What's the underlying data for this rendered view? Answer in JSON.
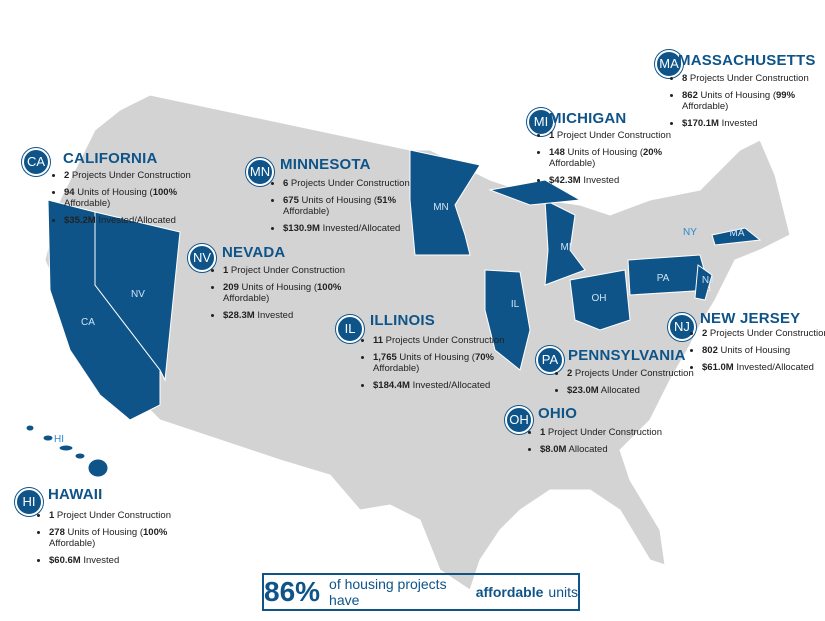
{
  "states": [
    {
      "abbr": "MA",
      "name": "MASSACHUSETTS",
      "bullets": [
        [
          "8",
          " Projects Under Construction"
        ],
        [
          "862",
          " Units of Housing (",
          "99%",
          " Affordable)"
        ],
        [
          "$170.1M",
          " Invested"
        ]
      ]
    },
    {
      "abbr": "MI",
      "name": "MICHIGAN",
      "bullets": [
        [
          "1",
          " Project Under Construction"
        ],
        [
          "148",
          " Units of Housing (",
          "20%",
          " Affordable)"
        ],
        [
          "$42.3M",
          " Invested"
        ]
      ]
    },
    {
      "abbr": "CA",
      "name": "CALIFORNIA",
      "bullets": [
        [
          "2",
          " Projects Under Construction"
        ],
        [
          "94",
          " Units of Housing (",
          "100%",
          " Affordable)"
        ],
        [
          "$35.2M",
          " Invested/Allocated"
        ]
      ]
    },
    {
      "abbr": "MN",
      "name": "MINNESOTA",
      "bullets": [
        [
          "6",
          " Projects Under Construction"
        ],
        [
          "675",
          " Units of Housing (",
          "51%",
          " Affordable)"
        ],
        [
          "$130.9M",
          " Invested/Allocated"
        ]
      ]
    },
    {
      "abbr": "NV",
      "name": "NEVADA",
      "bullets": [
        [
          "1",
          " Project Under Construction"
        ],
        [
          "209",
          " Units of Housing (",
          "100%",
          " Affordable)"
        ],
        [
          "$28.3M",
          " Invested"
        ]
      ]
    },
    {
      "abbr": "IL",
      "name": "ILLINOIS",
      "bullets": [
        [
          "11",
          " Projects Under Construction"
        ],
        [
          "1,765",
          " Units of Housing (",
          "70%",
          " Affordable)"
        ],
        [
          "$184.4M",
          " Invested/Allocated"
        ]
      ]
    },
    {
      "abbr": "PA",
      "name": "PENNSYLVANIA",
      "bullets": [
        [
          "2",
          " Projects Under Construction"
        ],
        [
          "$23.0M",
          " Allocated"
        ]
      ]
    },
    {
      "abbr": "NJ",
      "name": "NEW JERSEY",
      "bullets": [
        [
          "2",
          " Projects Under Construction"
        ],
        [
          "802",
          " Units of Housing"
        ],
        [
          "$61.0M",
          " Invested/Allocated"
        ]
      ]
    },
    {
      "abbr": "OH",
      "name": "OHIO",
      "bullets": [
        [
          "1",
          " Project Under Construction"
        ],
        [
          "$8.0M",
          " Allocated"
        ]
      ]
    },
    {
      "abbr": "HI",
      "name": "HAWAII",
      "bullets": [
        [
          "1",
          " Project Under Construction"
        ],
        [
          "278",
          " Units of Housing (",
          "100%",
          " Affordable)"
        ],
        [
          "$60.6M",
          " Invested"
        ]
      ]
    }
  ],
  "map_labels": [
    "CA",
    "NV",
    "MN",
    "MI",
    "IL",
    "OH",
    "PA",
    "NJ",
    "MA",
    "NY",
    "HI"
  ],
  "footer": {
    "stat": "86%",
    "prefix": "of housing projects have",
    "emphasis": "affordable",
    "suffix": "units"
  }
}
